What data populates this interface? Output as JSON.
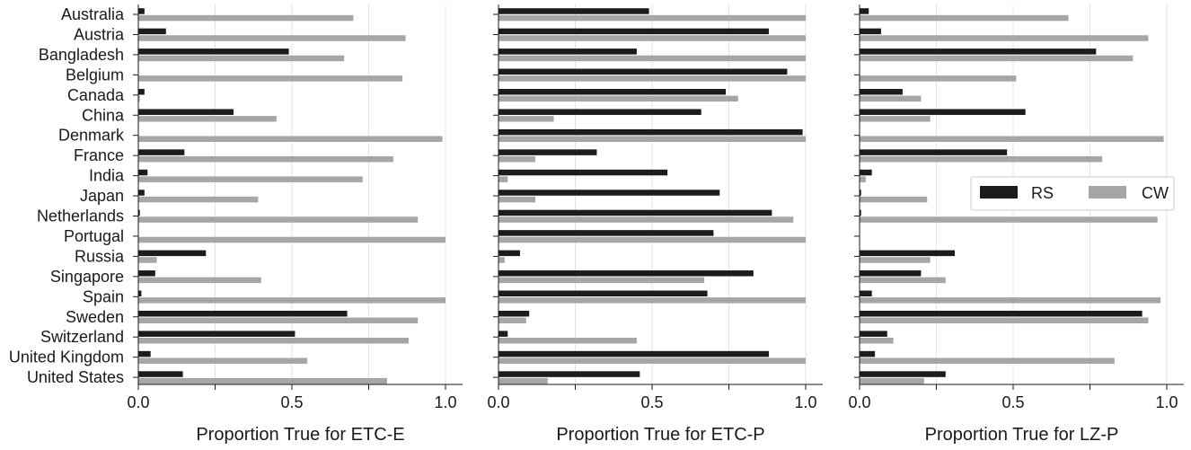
{
  "chart_data": {
    "type": "bar",
    "orientation": "horizontal",
    "grid": "vertical gridlines only",
    "legend_placement": "right panel, middle-right",
    "categories": [
      "Australia",
      "Austria",
      "Bangladesh",
      "Belgium",
      "Canada",
      "China",
      "Denmark",
      "France",
      "India",
      "Japan",
      "Netherlands",
      "Portugal",
      "Russia",
      "Singapore",
      "Spain",
      "Sweden",
      "Switzerland",
      "United Kingdom",
      "United States"
    ],
    "legend": [
      {
        "name": "RS",
        "color": "#1c1c1c"
      },
      {
        "name": "CW",
        "color": "#a6a6a6"
      }
    ],
    "xlim": [
      0,
      1
    ],
    "xticks": [
      0.0,
      0.25,
      0.5,
      0.75,
      1.0
    ],
    "xtick_labels": [
      "0.0",
      "0.5",
      "1.0"
    ],
    "panels": [
      {
        "xlabel": "Proportion True for ETC-E",
        "series": [
          {
            "name": "RS",
            "values": [
              0.02,
              0.09,
              0.49,
              0.0,
              0.02,
              0.31,
              0.0,
              0.15,
              0.03,
              0.02,
              0.005,
              0.0,
              0.22,
              0.055,
              0.01,
              0.68,
              0.51,
              0.04,
              0.145
            ]
          },
          {
            "name": "CW",
            "values": [
              0.7,
              0.87,
              0.67,
              0.86,
              0.005,
              0.45,
              0.99,
              0.83,
              0.73,
              0.39,
              0.91,
              1.0,
              0.06,
              0.4,
              1.0,
              0.91,
              0.88,
              0.55,
              0.81
            ]
          }
        ]
      },
      {
        "xlabel": "Proportion True for ETC-P",
        "series": [
          {
            "name": "RS",
            "values": [
              0.49,
              0.88,
              0.45,
              0.94,
              0.74,
              0.66,
              0.99,
              0.32,
              0.55,
              0.72,
              0.89,
              0.7,
              0.07,
              0.83,
              0.68,
              0.1,
              0.03,
              0.88,
              0.46
            ]
          },
          {
            "name": "CW",
            "values": [
              1.0,
              1.0,
              1.0,
              1.0,
              0.78,
              0.18,
              1.0,
              0.12,
              0.03,
              0.12,
              0.96,
              1.0,
              0.02,
              0.67,
              1.0,
              0.09,
              0.45,
              1.0,
              0.16
            ]
          }
        ]
      },
      {
        "xlabel": "Proportion True for LZ-P",
        "series": [
          {
            "name": "RS",
            "values": [
              0.03,
              0.07,
              0.77,
              0.0,
              0.14,
              0.54,
              0.0,
              0.48,
              0.04,
              0.005,
              0.005,
              0.0,
              0.31,
              0.2,
              0.04,
              0.92,
              0.09,
              0.05,
              0.28
            ]
          },
          {
            "name": "CW",
            "values": [
              0.68,
              0.94,
              0.89,
              0.51,
              0.2,
              0.23,
              0.99,
              0.79,
              0.02,
              0.22,
              0.97,
              0.0,
              0.23,
              0.28,
              0.98,
              0.94,
              0.11,
              0.83,
              0.21
            ]
          }
        ]
      }
    ]
  }
}
